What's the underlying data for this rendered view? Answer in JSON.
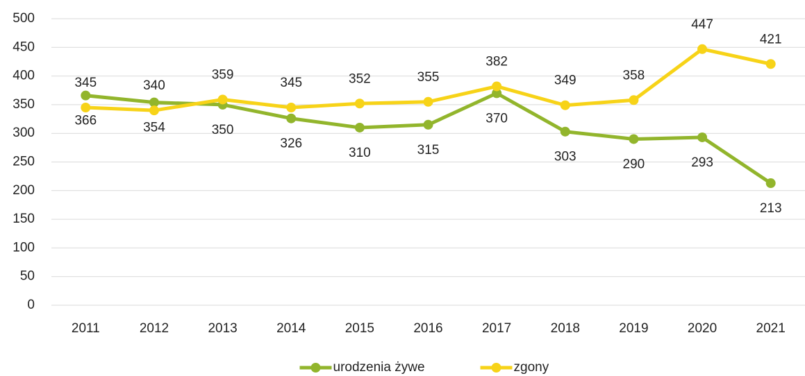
{
  "chart_data": {
    "type": "line",
    "categories": [
      "2011",
      "2012",
      "2013",
      "2014",
      "2015",
      "2016",
      "2017",
      "2018",
      "2019",
      "2020",
      "2021"
    ],
    "series": [
      {
        "name": "urodzenia żywe",
        "color": "#92b52c",
        "values": [
          366,
          354,
          350,
          326,
          310,
          315,
          370,
          303,
          290,
          293,
          213
        ]
      },
      {
        "name": "zgony",
        "color": "#f7d318",
        "values": [
          345,
          340,
          359,
          345,
          352,
          355,
          382,
          349,
          358,
          447,
          421
        ]
      }
    ],
    "ylim": [
      0,
      500
    ],
    "yticks": [
      0,
      50,
      100,
      150,
      200,
      250,
      300,
      350,
      400,
      450,
      500
    ],
    "grid": true,
    "legend": "bottom"
  }
}
